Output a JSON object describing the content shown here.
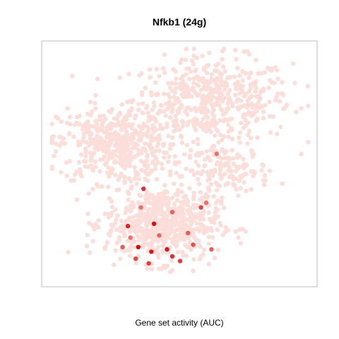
{
  "chart_data": {
    "type": "scatter",
    "title": "Nfkb1 (24g)",
    "xlabel": "Gene set activity (AUC)",
    "ylabel": "",
    "axes_shown": false,
    "grid": false,
    "color_scale": {
      "low": "#fbded9",
      "high": "#e00000"
    },
    "description_of_points": "t-SNE embedding of cells; nearly all cells pale pink (low AUC), a few dozen cells in lower cluster shaded red (high AUC).",
    "clusters": [
      {
        "name": "upper-right",
        "cx": 0.62,
        "cy": 0.77,
        "sx": 0.17,
        "sy": 0.1,
        "n": 520
      },
      {
        "name": "left-middle",
        "cx": 0.25,
        "cy": 0.58,
        "sx": 0.12,
        "sy": 0.09,
        "n": 480
      },
      {
        "name": "right-middle",
        "cx": 0.68,
        "cy": 0.47,
        "sx": 0.09,
        "sy": 0.06,
        "n": 150
      },
      {
        "name": "lower",
        "cx": 0.43,
        "cy": 0.24,
        "sx": 0.12,
        "sy": 0.09,
        "n": 620
      }
    ],
    "highlighted_points": [
      {
        "x": 0.3,
        "y": 0.23,
        "level": 0.85
      },
      {
        "x": 0.34,
        "y": 0.14,
        "level": 1.0
      },
      {
        "x": 0.4,
        "y": 0.24,
        "level": 0.95
      },
      {
        "x": 0.45,
        "y": 0.13,
        "level": 0.9
      },
      {
        "x": 0.47,
        "y": 0.1,
        "level": 0.8
      },
      {
        "x": 0.33,
        "y": 0.09,
        "level": 0.7
      },
      {
        "x": 0.38,
        "y": 0.07,
        "level": 0.75
      },
      {
        "x": 0.58,
        "y": 0.31,
        "level": 0.7
      },
      {
        "x": 0.62,
        "y": 0.13,
        "level": 0.6
      },
      {
        "x": 0.55,
        "y": 0.15,
        "level": 0.65
      },
      {
        "x": 0.36,
        "y": 0.39,
        "level": 0.8
      },
      {
        "x": 0.28,
        "y": 0.14,
        "level": 0.6
      },
      {
        "x": 0.42,
        "y": 0.19,
        "level": 0.55
      },
      {
        "x": 0.5,
        "y": 0.08,
        "level": 0.75
      },
      {
        "x": 0.64,
        "y": 0.54,
        "level": 0.5
      },
      {
        "x": 0.31,
        "y": 0.18,
        "level": 0.5
      },
      {
        "x": 0.39,
        "y": 0.12,
        "level": 0.9
      },
      {
        "x": 0.53,
        "y": 0.2,
        "level": 0.6
      },
      {
        "x": 0.47,
        "y": 0.29,
        "level": 0.55
      },
      {
        "x": 0.35,
        "y": 0.31,
        "level": 0.5
      },
      {
        "x": 0.6,
        "y": 0.33,
        "level": 0.5
      }
    ]
  }
}
